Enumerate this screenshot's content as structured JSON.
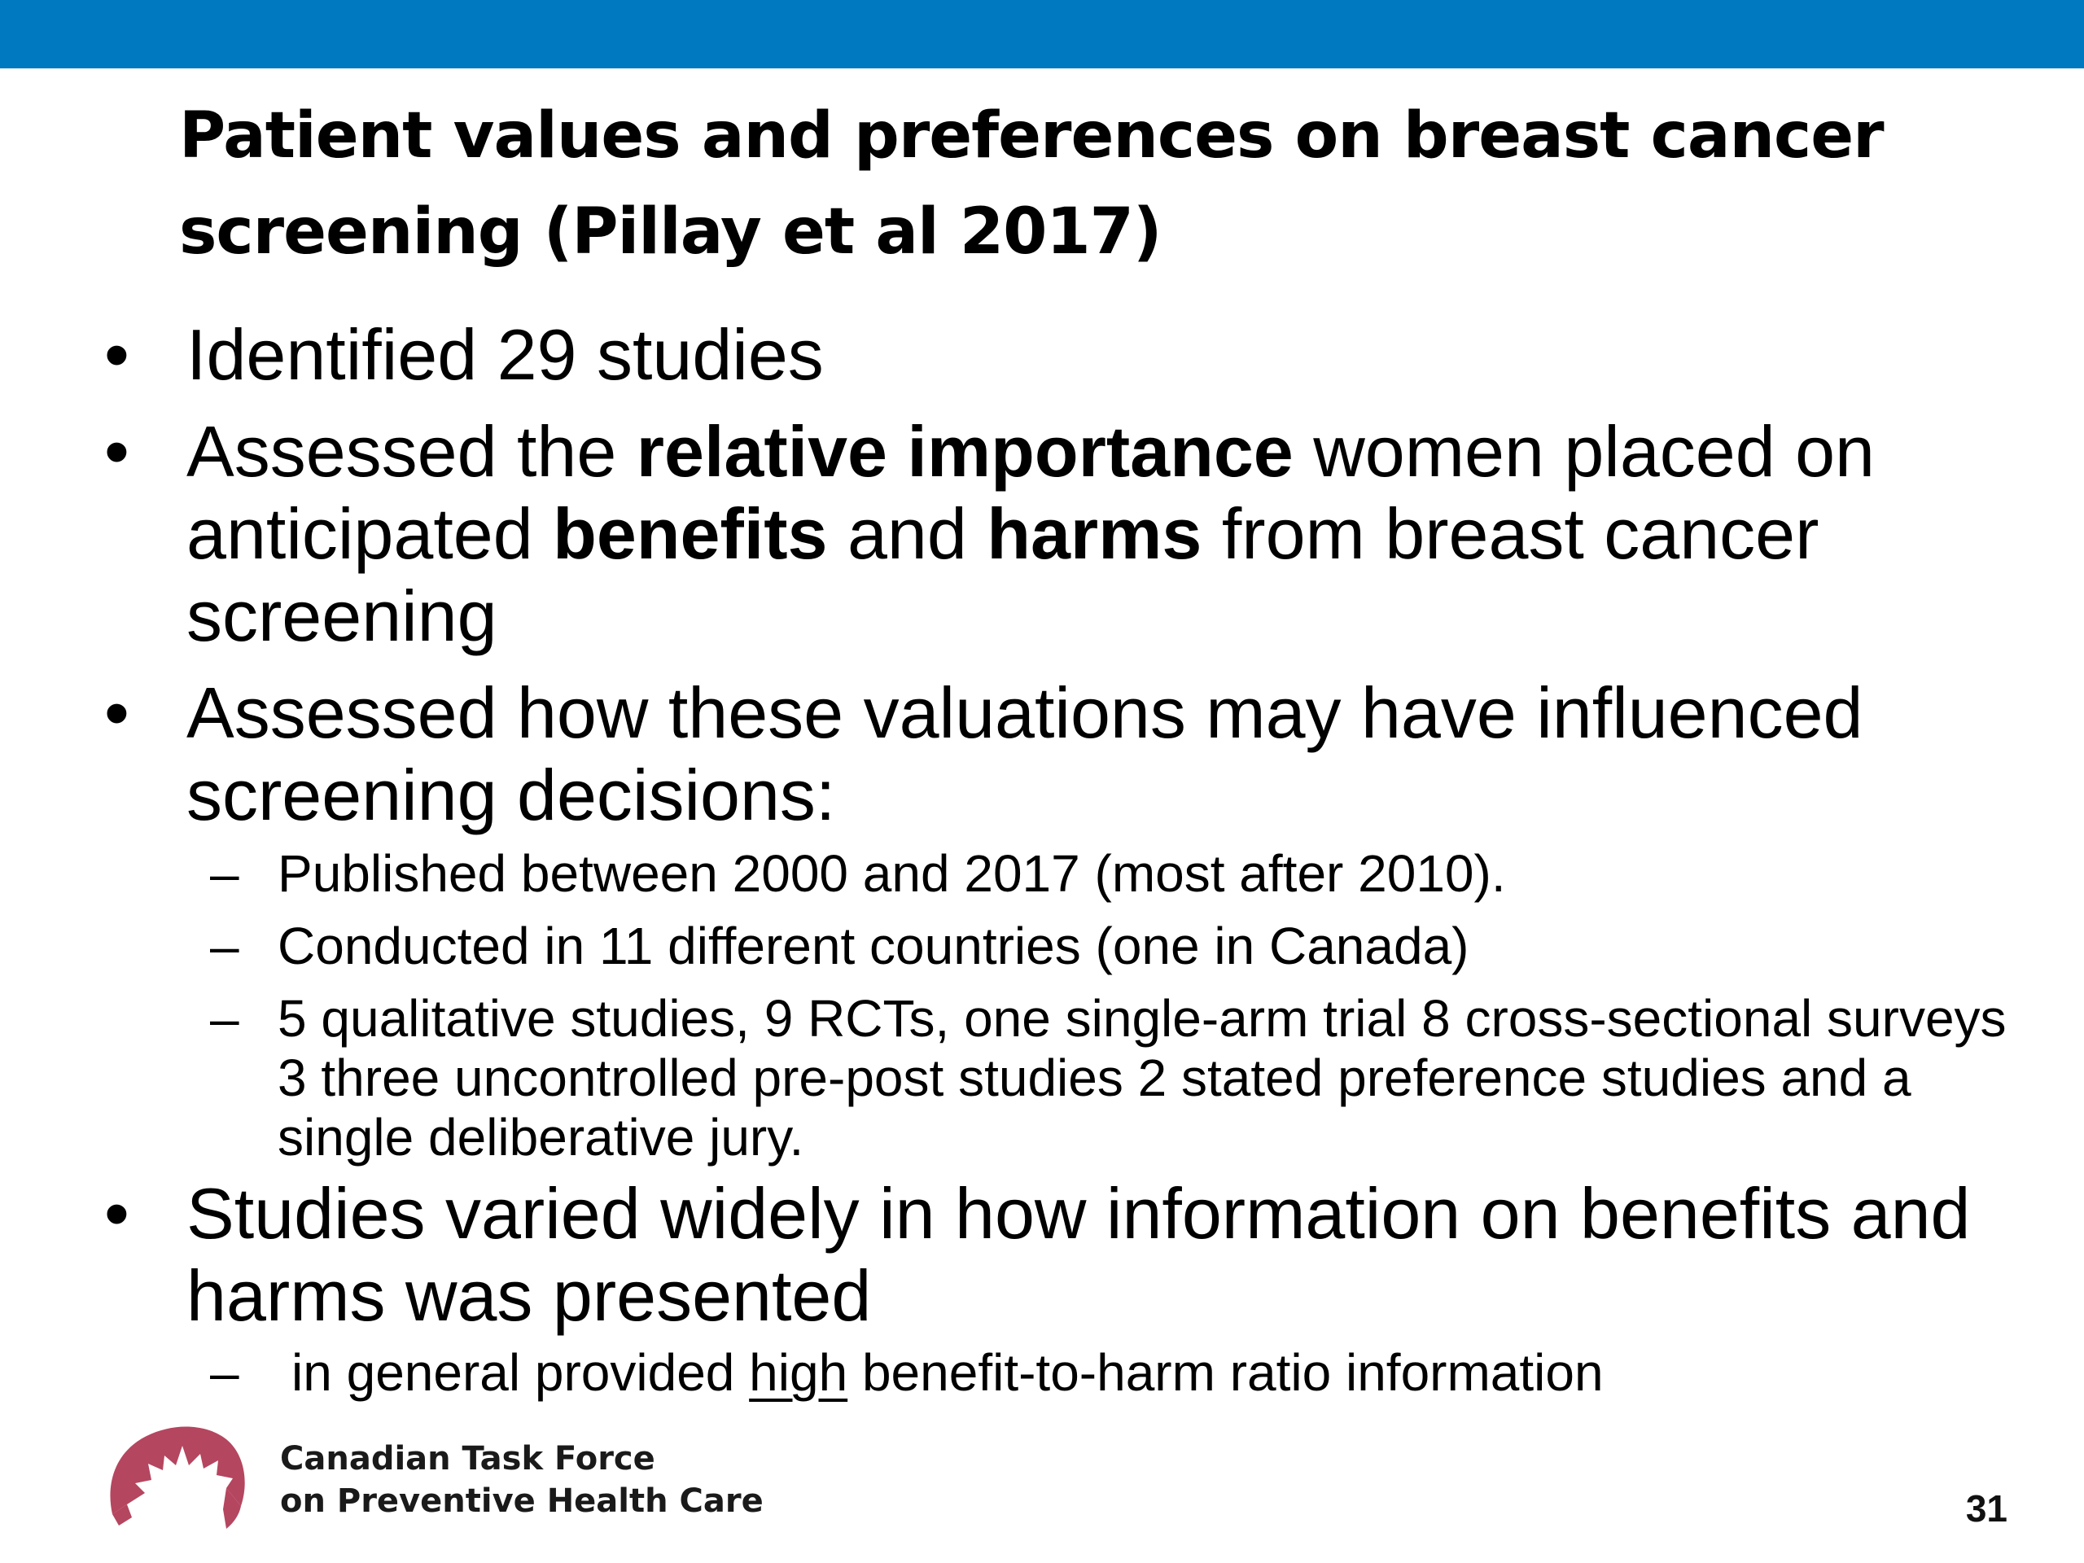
{
  "slide": {
    "title_line1": "Patient values and preferences on breast cancer",
    "title_line2": "screening (Pillay et al 2017)",
    "page_number": "31"
  },
  "bullets": [
    {
      "text": "Identified 29 studies"
    },
    {
      "t1": "Assessed the ",
      "b1": "relative importance",
      "t2": " women placed on anticipated ",
      "b2": "benefits",
      "t3": " and ",
      "b3": "harms",
      "t4": " from breast cancer screening"
    },
    {
      "text": "Assessed how these valuations may have influenced screening decisions:",
      "subs": [
        "Published between 2000 and 2017 (most after 2010).",
        "Conducted in 11 different countries (one in Canada)",
        "5 qualitative studies, 9  RCTs, one single-arm trial 8 cross-sectional surveys 3 three uncontrolled pre-post studies 2 stated preference studies and a single deliberative jury."
      ]
    },
    {
      "text": "Studies varied widely in how information on benefits and harms was presented",
      "sub_pre": "in general provided ",
      "sub_underlined": "high",
      "sub_post": " benefit-to-harm ratio information"
    }
  ],
  "symbols": {
    "bullet": "•",
    "dash": "–"
  },
  "footer": {
    "org_line1": "Canadian Task Force",
    "org_line2": "on Preventive Health Care",
    "logo_icon": "maple-leaf-logo-icon"
  },
  "colors": {
    "top_bar": "#0079c1",
    "logo": "#b5465f"
  }
}
